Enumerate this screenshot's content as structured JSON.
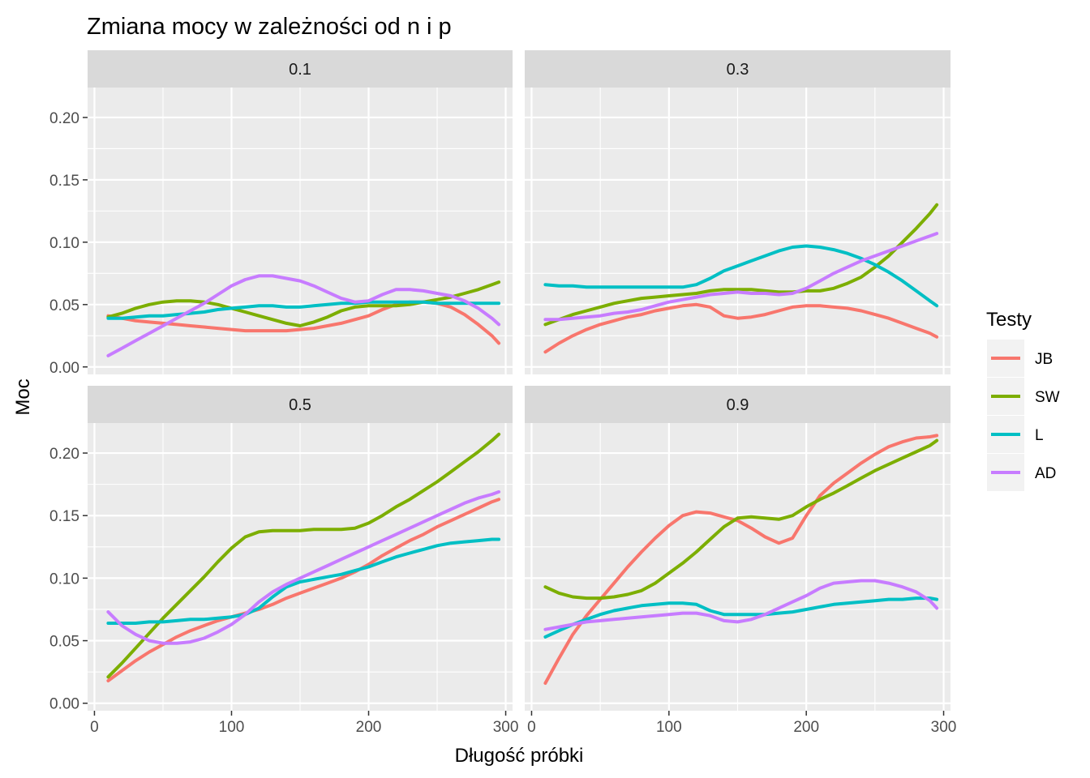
{
  "chart_data": {
    "type": "line",
    "title": "Zmiana mocy w zależności od n i p",
    "xlabel": "Długość próbki",
    "ylabel": "Moc",
    "xlim": [
      -5,
      305
    ],
    "ylim": [
      -0.006,
      0.224
    ],
    "x_ticks": [
      0,
      100,
      200,
      300
    ],
    "y_ticks": [
      0.0,
      0.05,
      0.1,
      0.15,
      0.2
    ],
    "x_tick_labels": [
      "0",
      "100",
      "200",
      "300"
    ],
    "y_tick_labels": [
      "0.00",
      "0.05",
      "0.10",
      "0.15",
      "0.20"
    ],
    "grid": true,
    "legend": {
      "title": "Testy",
      "position": "right",
      "entries": [
        {
          "name": "JB",
          "color": "#F8766D"
        },
        {
          "name": "SW",
          "color": "#7CAE00"
        },
        {
          "name": "L",
          "color": "#00BFC4"
        },
        {
          "name": "AD",
          "color": "#C77CFF"
        }
      ]
    },
    "x": [
      10,
      20,
      30,
      40,
      50,
      60,
      70,
      80,
      90,
      100,
      110,
      120,
      130,
      140,
      150,
      160,
      170,
      180,
      190,
      200,
      210,
      220,
      230,
      240,
      250,
      260,
      270,
      280,
      290,
      295
    ],
    "panels": [
      {
        "label": "0.1",
        "series": [
          {
            "name": "JB",
            "values": [
              0.041,
              0.039,
              0.037,
              0.036,
              0.035,
              0.034,
              0.033,
              0.032,
              0.031,
              0.03,
              0.029,
              0.029,
              0.029,
              0.029,
              0.03,
              0.031,
              0.033,
              0.035,
              0.038,
              0.041,
              0.046,
              0.05,
              0.052,
              0.052,
              0.051,
              0.048,
              0.042,
              0.034,
              0.025,
              0.019
            ]
          },
          {
            "name": "SW",
            "values": [
              0.04,
              0.043,
              0.047,
              0.05,
              0.052,
              0.053,
              0.053,
              0.052,
              0.05,
              0.047,
              0.044,
              0.041,
              0.038,
              0.035,
              0.033,
              0.036,
              0.04,
              0.045,
              0.048,
              0.049,
              0.049,
              0.049,
              0.05,
              0.052,
              0.054,
              0.056,
              0.059,
              0.062,
              0.066,
              0.068
            ]
          },
          {
            "name": "L",
            "values": [
              0.039,
              0.039,
              0.04,
              0.041,
              0.041,
              0.042,
              0.043,
              0.044,
              0.046,
              0.047,
              0.048,
              0.049,
              0.049,
              0.048,
              0.048,
              0.049,
              0.05,
              0.051,
              0.051,
              0.052,
              0.052,
              0.052,
              0.052,
              0.052,
              0.051,
              0.051,
              0.051,
              0.051,
              0.051,
              0.051
            ]
          },
          {
            "name": "AD",
            "values": [
              0.009,
              0.015,
              0.021,
              0.027,
              0.033,
              0.039,
              0.045,
              0.051,
              0.058,
              0.065,
              0.07,
              0.073,
              0.073,
              0.071,
              0.069,
              0.065,
              0.06,
              0.055,
              0.052,
              0.053,
              0.058,
              0.062,
              0.062,
              0.061,
              0.059,
              0.057,
              0.053,
              0.047,
              0.039,
              0.034
            ]
          }
        ]
      },
      {
        "label": "0.3",
        "series": [
          {
            "name": "JB",
            "values": [
              0.012,
              0.019,
              0.025,
              0.03,
              0.034,
              0.037,
              0.04,
              0.042,
              0.045,
              0.047,
              0.049,
              0.05,
              0.048,
              0.041,
              0.039,
              0.04,
              0.042,
              0.045,
              0.048,
              0.049,
              0.049,
              0.048,
              0.047,
              0.045,
              0.042,
              0.039,
              0.035,
              0.031,
              0.027,
              0.024
            ]
          },
          {
            "name": "SW",
            "values": [
              0.034,
              0.038,
              0.042,
              0.045,
              0.048,
              0.051,
              0.053,
              0.055,
              0.056,
              0.057,
              0.058,
              0.059,
              0.061,
              0.062,
              0.062,
              0.062,
              0.061,
              0.06,
              0.06,
              0.061,
              0.061,
              0.063,
              0.067,
              0.072,
              0.08,
              0.089,
              0.1,
              0.111,
              0.123,
              0.13
            ]
          },
          {
            "name": "L",
            "values": [
              0.066,
              0.065,
              0.065,
              0.064,
              0.064,
              0.064,
              0.064,
              0.064,
              0.064,
              0.064,
              0.064,
              0.066,
              0.071,
              0.077,
              0.081,
              0.085,
              0.089,
              0.093,
              0.096,
              0.097,
              0.096,
              0.094,
              0.091,
              0.087,
              0.082,
              0.076,
              0.069,
              0.061,
              0.053,
              0.049
            ]
          },
          {
            "name": "AD",
            "values": [
              0.038,
              0.038,
              0.039,
              0.04,
              0.041,
              0.043,
              0.044,
              0.046,
              0.049,
              0.052,
              0.054,
              0.056,
              0.058,
              0.059,
              0.06,
              0.059,
              0.059,
              0.058,
              0.059,
              0.063,
              0.069,
              0.075,
              0.08,
              0.085,
              0.089,
              0.093,
              0.097,
              0.101,
              0.105,
              0.107
            ]
          }
        ]
      },
      {
        "label": "0.5",
        "series": [
          {
            "name": "JB",
            "values": [
              0.018,
              0.026,
              0.034,
              0.041,
              0.047,
              0.053,
              0.058,
              0.062,
              0.066,
              0.069,
              0.072,
              0.075,
              0.079,
              0.084,
              0.088,
              0.092,
              0.096,
              0.1,
              0.105,
              0.111,
              0.118,
              0.124,
              0.13,
              0.135,
              0.141,
              0.146,
              0.151,
              0.156,
              0.161,
              0.163
            ]
          },
          {
            "name": "SW",
            "values": [
              0.021,
              0.032,
              0.044,
              0.056,
              0.068,
              0.079,
              0.09,
              0.101,
              0.113,
              0.124,
              0.133,
              0.137,
              0.138,
              0.138,
              0.138,
              0.139,
              0.139,
              0.139,
              0.14,
              0.144,
              0.15,
              0.157,
              0.163,
              0.17,
              0.177,
              0.185,
              0.193,
              0.201,
              0.21,
              0.215
            ]
          },
          {
            "name": "L",
            "values": [
              0.064,
              0.064,
              0.064,
              0.065,
              0.065,
              0.066,
              0.067,
              0.067,
              0.068,
              0.069,
              0.071,
              0.076,
              0.085,
              0.093,
              0.097,
              0.099,
              0.101,
              0.103,
              0.106,
              0.109,
              0.113,
              0.117,
              0.12,
              0.123,
              0.126,
              0.128,
              0.129,
              0.13,
              0.131,
              0.131
            ]
          },
          {
            "name": "AD",
            "values": [
              0.073,
              0.062,
              0.055,
              0.05,
              0.048,
              0.048,
              0.049,
              0.052,
              0.057,
              0.063,
              0.071,
              0.081,
              0.089,
              0.095,
              0.1,
              0.105,
              0.11,
              0.115,
              0.12,
              0.125,
              0.13,
              0.135,
              0.14,
              0.145,
              0.15,
              0.155,
              0.16,
              0.164,
              0.167,
              0.169
            ]
          }
        ]
      },
      {
        "label": "0.9",
        "series": [
          {
            "name": "JB",
            "values": [
              0.016,
              0.036,
              0.055,
              0.07,
              0.083,
              0.096,
              0.109,
              0.121,
              0.132,
              0.142,
              0.15,
              0.153,
              0.152,
              0.149,
              0.146,
              0.14,
              0.133,
              0.128,
              0.132,
              0.15,
              0.166,
              0.176,
              0.184,
              0.192,
              0.199,
              0.205,
              0.209,
              0.212,
              0.213,
              0.214
            ]
          },
          {
            "name": "SW",
            "values": [
              0.093,
              0.088,
              0.085,
              0.084,
              0.084,
              0.085,
              0.087,
              0.09,
              0.096,
              0.104,
              0.112,
              0.121,
              0.131,
              0.141,
              0.148,
              0.149,
              0.148,
              0.147,
              0.15,
              0.157,
              0.163,
              0.168,
              0.174,
              0.18,
              0.186,
              0.191,
              0.196,
              0.201,
              0.206,
              0.21
            ]
          },
          {
            "name": "L",
            "values": [
              0.053,
              0.058,
              0.063,
              0.067,
              0.071,
              0.074,
              0.076,
              0.078,
              0.079,
              0.08,
              0.08,
              0.079,
              0.074,
              0.071,
              0.071,
              0.071,
              0.071,
              0.072,
              0.073,
              0.075,
              0.077,
              0.079,
              0.08,
              0.081,
              0.082,
              0.083,
              0.083,
              0.084,
              0.084,
              0.083
            ]
          },
          {
            "name": "AD",
            "values": [
              0.059,
              0.061,
              0.063,
              0.065,
              0.066,
              0.067,
              0.068,
              0.069,
              0.07,
              0.071,
              0.072,
              0.072,
              0.07,
              0.066,
              0.065,
              0.067,
              0.071,
              0.076,
              0.081,
              0.086,
              0.092,
              0.096,
              0.097,
              0.098,
              0.098,
              0.096,
              0.093,
              0.089,
              0.082,
              0.076
            ]
          }
        ]
      }
    ]
  }
}
